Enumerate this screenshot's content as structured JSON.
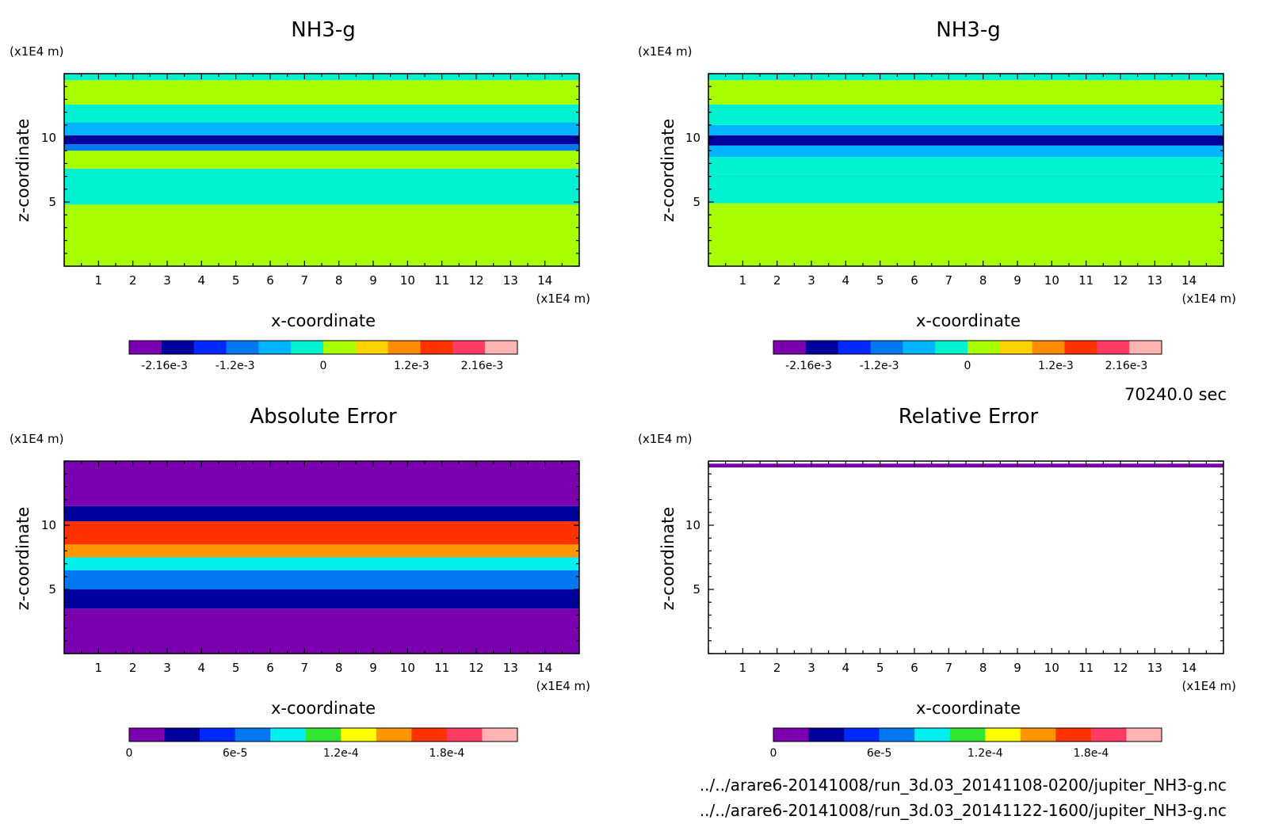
{
  "file_paths": [
    "../../arare6-20141008/run_3d.03_20141108-0200/jupiter_NH3-g.nc",
    "../../arare6-20141008/run_3d.03_20141122-1600/jupiter_NH3-g.nc"
  ],
  "timestamp": "70240.0 sec",
  "chart_data": [
    {
      "type": "heatmap",
      "title": "NH3-g",
      "xlabel": "x-coordinate",
      "ylabel": "z-coordinate",
      "x_unit": "(x1E4 m)",
      "y_unit": "(x1E4 m)",
      "xlim": [
        0,
        15
      ],
      "ylim": [
        0,
        15
      ],
      "x_ticks": [
        1,
        2,
        3,
        4,
        5,
        6,
        7,
        8,
        9,
        10,
        11,
        12,
        13,
        14
      ],
      "y_ticks": [
        5,
        10
      ],
      "color_levels": [
        "#7a00b0",
        "#00009c",
        "#0028ff",
        "#0078f0",
        "#00b4ff",
        "#00f0d2",
        "#a8ff00",
        "#ffd200",
        "#ff8c00",
        "#ff3200",
        "#ff3c64",
        "#ffb4b4"
      ],
      "colorbar_ticks": [
        {
          "label": "-2.16e-3",
          "value": -0.00216
        },
        {
          "label": "-1.2e-3",
          "value": -0.0012
        },
        {
          "label": "0",
          "value": 0
        },
        {
          "label": "1.2e-3",
          "value": 0.0012
        },
        {
          "label": "2.16e-3",
          "value": 0.00216
        }
      ],
      "colorbar_range": [
        -0.00264,
        0.00264
      ],
      "bands": [
        {
          "z": [
            0,
            4.8
          ],
          "level": 6
        },
        {
          "z": [
            4.8,
            7.6
          ],
          "level": 5
        },
        {
          "z": [
            7.6,
            9.0
          ],
          "level": 6
        },
        {
          "z": [
            9.0,
            9.5
          ],
          "level": 3
        },
        {
          "z": [
            9.5,
            10.2
          ],
          "level": 1
        },
        {
          "z": [
            10.2,
            11.2
          ],
          "level": 4
        },
        {
          "z": [
            11.2,
            12.6
          ],
          "level": 5
        },
        {
          "z": [
            12.6,
            14.5
          ],
          "level": 6
        },
        {
          "z": [
            14.5,
            15
          ],
          "level": 5
        }
      ]
    },
    {
      "type": "heatmap",
      "title": "NH3-g",
      "xlabel": "x-coordinate",
      "ylabel": "z-coordinate",
      "x_unit": "(x1E4 m)",
      "y_unit": "(x1E4 m)",
      "xlim": [
        0,
        15
      ],
      "ylim": [
        0,
        15
      ],
      "x_ticks": [
        1,
        2,
        3,
        4,
        5,
        6,
        7,
        8,
        9,
        10,
        11,
        12,
        13,
        14
      ],
      "y_ticks": [
        5,
        10
      ],
      "color_levels": [
        "#7a00b0",
        "#00009c",
        "#0028ff",
        "#0078f0",
        "#00b4ff",
        "#00f0d2",
        "#a8ff00",
        "#ffd200",
        "#ff8c00",
        "#ff3200",
        "#ff3c64",
        "#ffb4b4"
      ],
      "colorbar_ticks": [
        {
          "label": "-2.16e-3",
          "value": -0.00216
        },
        {
          "label": "-1.2e-3",
          "value": -0.0012
        },
        {
          "label": "0",
          "value": 0
        },
        {
          "label": "1.2e-3",
          "value": 0.0012
        },
        {
          "label": "2.16e-3",
          "value": 0.00216
        }
      ],
      "colorbar_range": [
        -0.00264,
        0.00264
      ],
      "bands": [
        {
          "z": [
            0,
            4.9
          ],
          "level": 6
        },
        {
          "z": [
            4.9,
            7.2
          ],
          "level": 5
        },
        {
          "z": [
            7.2,
            8.5
          ],
          "level": 5
        },
        {
          "z": [
            8.5,
            9.4
          ],
          "level": 4
        },
        {
          "z": [
            9.4,
            10.2
          ],
          "level": 1
        },
        {
          "z": [
            10.2,
            11.0
          ],
          "level": 4
        },
        {
          "z": [
            11.0,
            12.6
          ],
          "level": 5
        },
        {
          "z": [
            12.6,
            14.5
          ],
          "level": 6
        },
        {
          "z": [
            14.5,
            15
          ],
          "level": 5
        }
      ]
    },
    {
      "type": "heatmap",
      "title": "Absolute Error",
      "xlabel": "x-coordinate",
      "ylabel": "z-coordinate",
      "x_unit": "(x1E4 m)",
      "y_unit": "(x1E4 m)",
      "xlim": [
        0,
        15
      ],
      "ylim": [
        0,
        15
      ],
      "x_ticks": [
        1,
        2,
        3,
        4,
        5,
        6,
        7,
        8,
        9,
        10,
        11,
        12,
        13,
        14
      ],
      "y_ticks": [
        5,
        10
      ],
      "color_levels": [
        "#7a00b0",
        "#00009c",
        "#0028ff",
        "#0078f0",
        "#00f0f0",
        "#32e632",
        "#ffff00",
        "#ff9600",
        "#ff3200",
        "#ff3c64",
        "#ffb4b4"
      ],
      "colorbar_ticks": [
        {
          "label": "0",
          "value": 0
        },
        {
          "label": "6e-5",
          "value": 6e-05
        },
        {
          "label": "1.2e-4",
          "value": 0.00012
        },
        {
          "label": "1.8e-4",
          "value": 0.00018
        }
      ],
      "colorbar_range": [
        0,
        0.00022
      ],
      "bands": [
        {
          "z": [
            0,
            3.5
          ],
          "level": 0
        },
        {
          "z": [
            3.5,
            5.0
          ],
          "level": 1
        },
        {
          "z": [
            5.0,
            6.5
          ],
          "level": 3
        },
        {
          "z": [
            6.5,
            7.5
          ],
          "level": 4
        },
        {
          "z": [
            7.5,
            8.5
          ],
          "level": 7
        },
        {
          "z": [
            8.5,
            10.3
          ],
          "level": 8
        },
        {
          "z": [
            10.3,
            11.5
          ],
          "level": 1
        },
        {
          "z": [
            11.5,
            15
          ],
          "level": 0
        }
      ]
    },
    {
      "type": "heatmap",
      "title": "Relative Error",
      "xlabel": "x-coordinate",
      "ylabel": "z-coordinate",
      "x_unit": "(x1E4 m)",
      "y_unit": "(x1E4 m)",
      "xlim": [
        0,
        15
      ],
      "ylim": [
        0,
        15
      ],
      "x_ticks": [
        1,
        2,
        3,
        4,
        5,
        6,
        7,
        8,
        9,
        10,
        11,
        12,
        13,
        14
      ],
      "y_ticks": [
        5,
        10
      ],
      "color_levels": [
        "#7a00b0",
        "#00009c",
        "#0028ff",
        "#0078f0",
        "#00f0f0",
        "#32e632",
        "#ffff00",
        "#ff9600",
        "#ff3200",
        "#ff3c64",
        "#ffb4b4"
      ],
      "colorbar_ticks": [
        {
          "label": "0",
          "value": 0
        },
        {
          "label": "6e-5",
          "value": 6e-05
        },
        {
          "label": "1.2e-4",
          "value": 0.00012
        },
        {
          "label": "1.8e-4",
          "value": 0.00018
        }
      ],
      "colorbar_range": [
        0,
        0.00022
      ],
      "bands": [
        {
          "z": [
            14.5,
            14.8
          ],
          "level": 0
        }
      ]
    }
  ]
}
